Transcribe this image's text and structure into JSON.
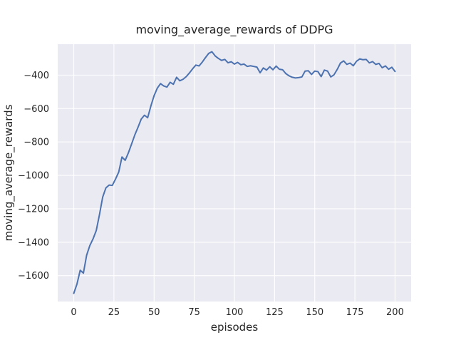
{
  "chart_data": {
    "type": "line",
    "title": "moving_average_rewards of DDPG",
    "xlabel": "episodes",
    "ylabel": "moving_average_rewards",
    "x_ticks": [
      0,
      25,
      50,
      75,
      100,
      125,
      150,
      175,
      200
    ],
    "y_ticks": [
      -400,
      -600,
      -800,
      -1000,
      -1200,
      -1400,
      -1600
    ],
    "xlim": [
      -10,
      210
    ],
    "ylim": [
      -1755,
      -215
    ],
    "grid": true,
    "legend": "none",
    "style": {
      "figure_bg": "#ffffff",
      "plot_bg": "#eaeaf2",
      "grid_color": "#ffffff",
      "line_color": "#4c72b0",
      "text_color": "#262626",
      "line_width": 2
    },
    "series": [
      {
        "name": "moving_average_rewards",
        "x": [
          0,
          2,
          4,
          6,
          8,
          10,
          12,
          14,
          16,
          18,
          20,
          22,
          24,
          26,
          28,
          30,
          32,
          34,
          36,
          38,
          40,
          42,
          44,
          46,
          48,
          50,
          52,
          54,
          56,
          58,
          60,
          62,
          64,
          66,
          68,
          70,
          72,
          74,
          76,
          78,
          80,
          82,
          84,
          86,
          88,
          90,
          92,
          94,
          96,
          98,
          100,
          102,
          104,
          106,
          108,
          110,
          112,
          114,
          116,
          118,
          120,
          122,
          124,
          126,
          128,
          130,
          132,
          134,
          136,
          138,
          140,
          142,
          144,
          146,
          148,
          150,
          152,
          154,
          156,
          158,
          160,
          162,
          164,
          166,
          168,
          170,
          172,
          174,
          176,
          178,
          180,
          182,
          184,
          186,
          188,
          190,
          192,
          194,
          196,
          198,
          200
        ],
        "values": [
          -1706,
          -1650,
          -1568,
          -1585,
          -1478,
          -1420,
          -1380,
          -1330,
          -1235,
          -1130,
          -1075,
          -1058,
          -1060,
          -1022,
          -980,
          -890,
          -910,
          -865,
          -812,
          -758,
          -712,
          -663,
          -640,
          -655,
          -585,
          -523,
          -478,
          -451,
          -465,
          -472,
          -443,
          -455,
          -413,
          -434,
          -425,
          -409,
          -387,
          -362,
          -340,
          -345,
          -322,
          -295,
          -270,
          -260,
          -285,
          -300,
          -312,
          -306,
          -326,
          -320,
          -334,
          -324,
          -338,
          -334,
          -348,
          -344,
          -348,
          -352,
          -386,
          -357,
          -370,
          -350,
          -368,
          -346,
          -365,
          -368,
          -391,
          -404,
          -413,
          -417,
          -415,
          -411,
          -376,
          -374,
          -396,
          -376,
          -379,
          -409,
          -370,
          -376,
          -411,
          -398,
          -366,
          -328,
          -315,
          -336,
          -328,
          -344,
          -317,
          -303,
          -308,
          -306,
          -327,
          -319,
          -336,
          -330,
          -356,
          -345,
          -365,
          -353,
          -378
        ]
      }
    ]
  }
}
